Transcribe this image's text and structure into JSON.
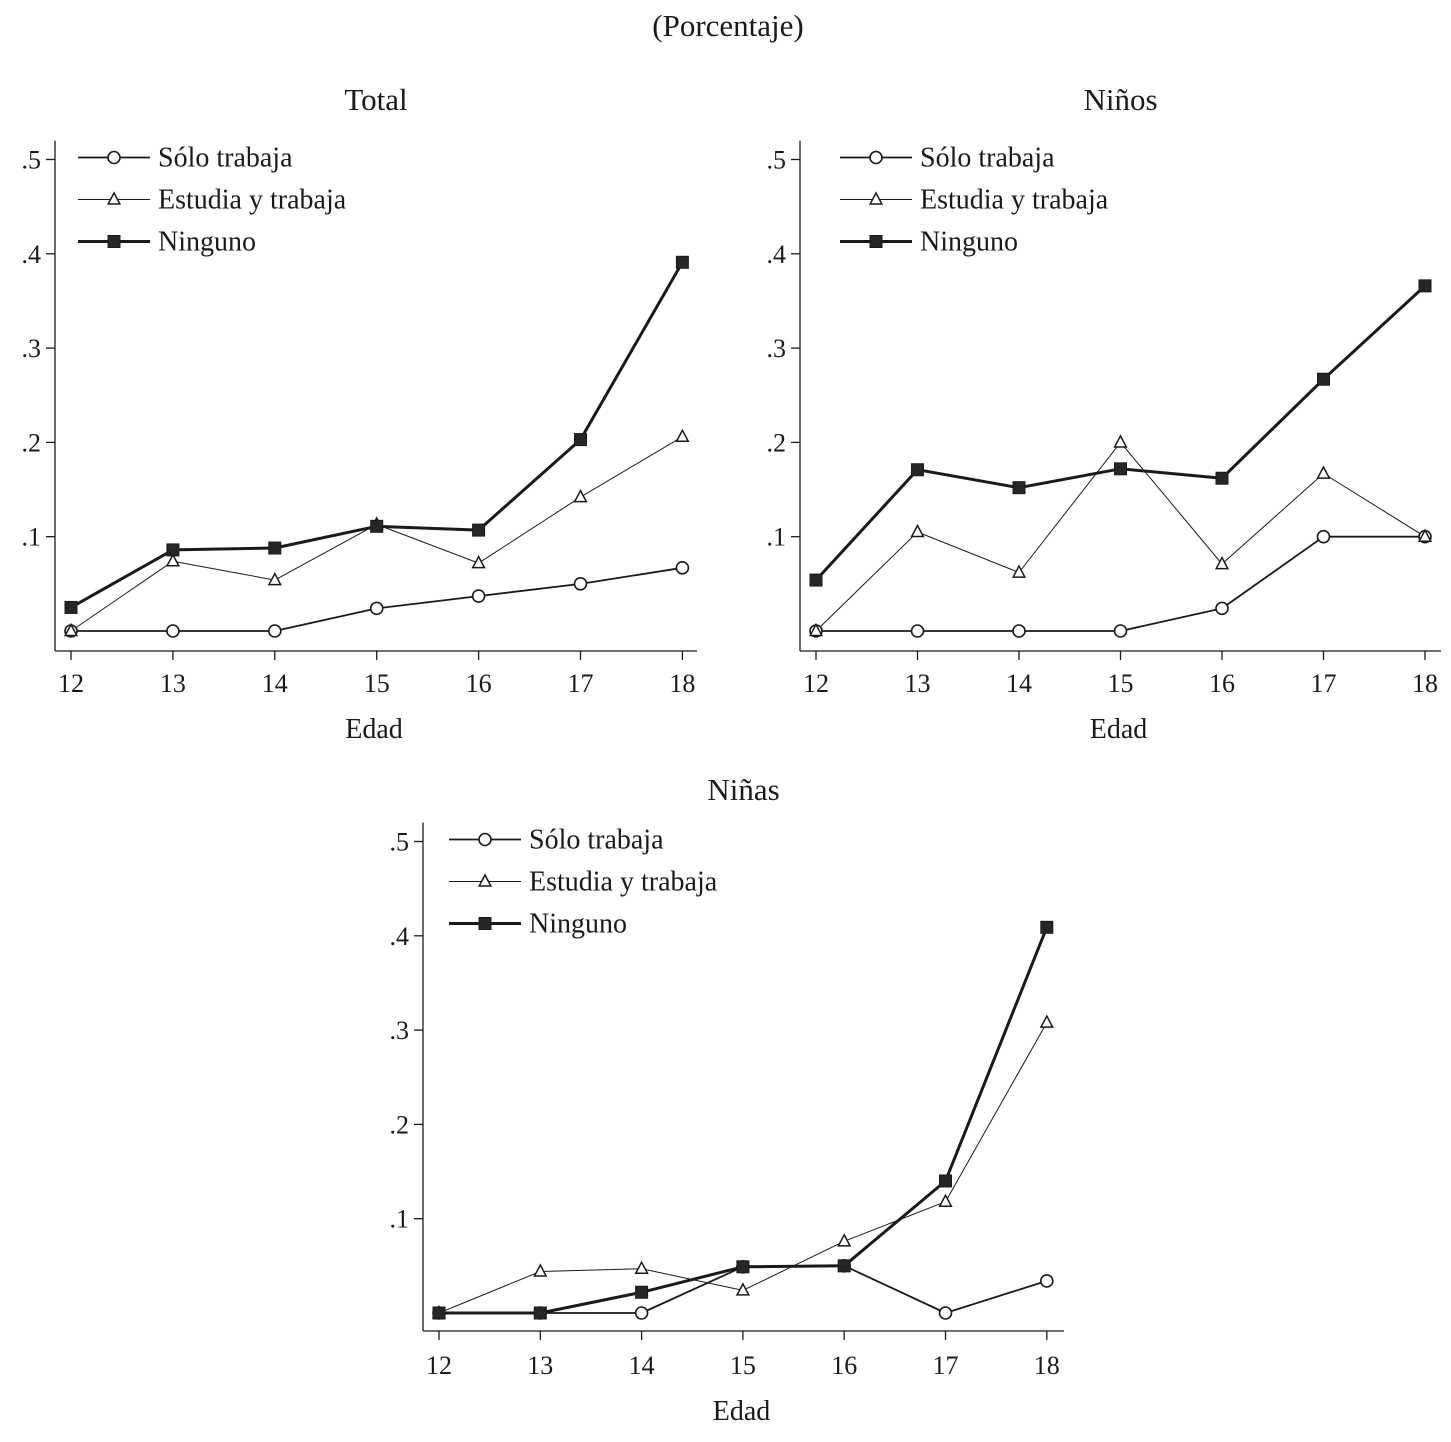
{
  "page_title": "(Porcentaje)",
  "legend": {
    "s1": "Sólo trabaja",
    "s2": "Estudia y trabaja",
    "s3": "Ninguno"
  },
  "chart_data": [
    {
      "type": "line",
      "title": "Total",
      "xlabel": "Edad",
      "ylabel": "",
      "x": [
        12,
        13,
        14,
        15,
        16,
        17,
        18
      ],
      "ylim": [
        -0.015,
        0.52
      ],
      "yticks": [
        ".1",
        ".2",
        ".3",
        ".4",
        ".5"
      ],
      "series": [
        {
          "name": "Sólo trabaja",
          "values": [
            0.0,
            0.0,
            0.0,
            0.024,
            0.037,
            0.05,
            0.067
          ]
        },
        {
          "name": "Estudia y trabaja",
          "values": [
            0.0,
            0.074,
            0.054,
            0.113,
            0.072,
            0.142,
            0.206
          ]
        },
        {
          "name": "Ninguno",
          "values": [
            0.025,
            0.086,
            0.088,
            0.111,
            0.107,
            0.203,
            0.391
          ]
        }
      ]
    },
    {
      "type": "line",
      "title": "Niños",
      "xlabel": "Edad",
      "ylabel": "",
      "x": [
        12,
        13,
        14,
        15,
        16,
        17,
        18
      ],
      "ylim": [
        -0.015,
        0.52
      ],
      "yticks": [
        ".1",
        ".2",
        ".3",
        ".4",
        ".5"
      ],
      "series": [
        {
          "name": "Sólo trabaja",
          "values": [
            0.0,
            0.0,
            0.0,
            0.0,
            0.024,
            0.1,
            0.1
          ]
        },
        {
          "name": "Estudia y trabaja",
          "values": [
            0.0,
            0.105,
            0.062,
            0.2,
            0.071,
            0.167,
            0.1
          ]
        },
        {
          "name": "Ninguno",
          "values": [
            0.054,
            0.171,
            0.152,
            0.172,
            0.162,
            0.267,
            0.366
          ]
        }
      ]
    },
    {
      "type": "line",
      "title": "Niñas",
      "xlabel": "Edad",
      "ylabel": "",
      "x": [
        12,
        13,
        14,
        15,
        16,
        17,
        18
      ],
      "ylim": [
        -0.015,
        0.52
      ],
      "yticks": [
        ".1",
        ".2",
        ".3",
        ".4",
        ".5"
      ],
      "series": [
        {
          "name": "Sólo trabaja",
          "values": [
            0.0,
            0.0,
            0.0,
            0.049,
            0.05,
            0.0,
            0.034
          ]
        },
        {
          "name": "Estudia y trabaja",
          "values": [
            0.0,
            0.044,
            0.047,
            0.024,
            0.076,
            0.118,
            0.308
          ]
        },
        {
          "name": "Ninguno",
          "values": [
            0.0,
            0.0,
            0.022,
            0.049,
            0.05,
            0.14,
            0.409
          ]
        }
      ]
    }
  ]
}
